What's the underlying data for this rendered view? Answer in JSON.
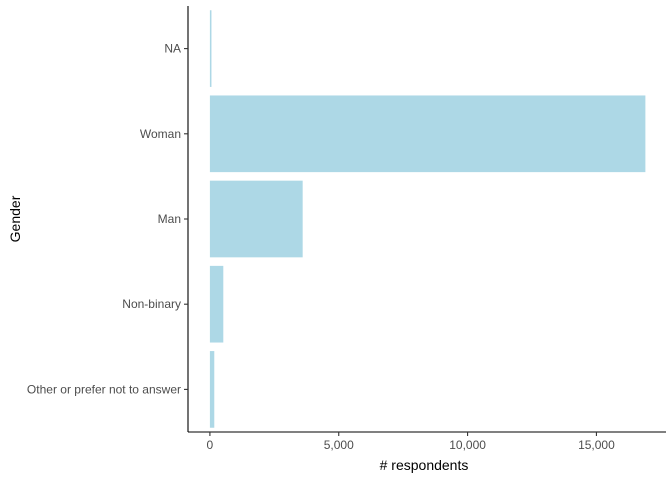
{
  "chart_data": {
    "type": "bar",
    "orientation": "horizontal",
    "title": "",
    "xlabel": "# respondents",
    "ylabel": "Gender",
    "categories": [
      "NA",
      "Woman",
      "Man",
      "Non-binary",
      "Other or prefer not to answer"
    ],
    "values": [
      60,
      16900,
      3600,
      520,
      170
    ],
    "xlim": [
      -850,
      17700
    ],
    "xticks": [
      0,
      5000,
      10000,
      15000
    ],
    "xtick_labels": [
      "0",
      "5,000",
      "10,000",
      "15,000"
    ],
    "bar_color": "#ADD8E6",
    "grid": false,
    "legend": "none"
  }
}
